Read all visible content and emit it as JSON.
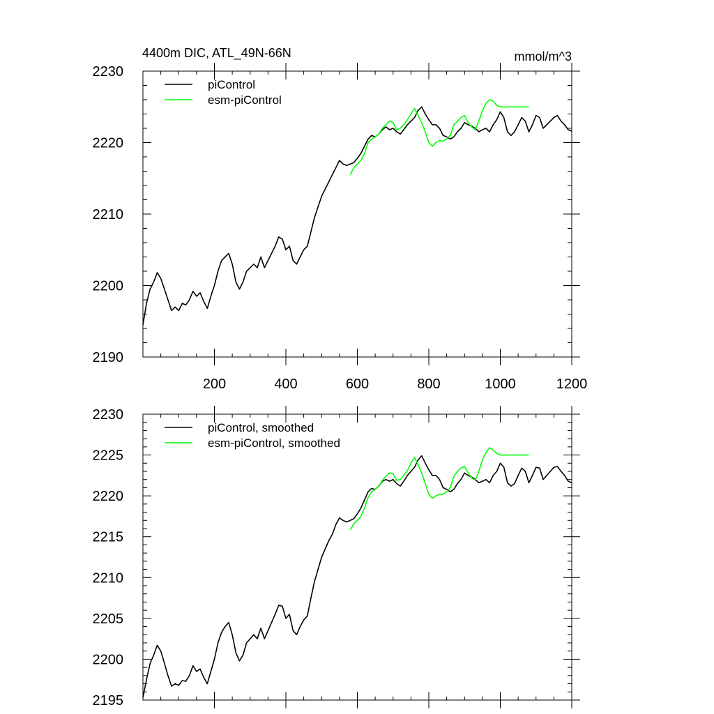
{
  "chart_data": [
    {
      "type": "line",
      "title": "4400m DIC, ATL_49N-66N",
      "units": "mmol/m^3",
      "xlim": [
        0,
        1200
      ],
      "ylim": [
        2190,
        2230
      ],
      "x_tick_labels": [
        "200",
        "400",
        "600",
        "800",
        "1000",
        "1200"
      ],
      "x_ticks": [
        200,
        400,
        600,
        800,
        1000,
        1200
      ],
      "y_tick_labels": [
        "2190",
        "2200",
        "2210",
        "2220",
        "2230"
      ],
      "y_ticks": [
        2190,
        2200,
        2210,
        2220,
        2230
      ],
      "legend_position": "top-left",
      "series": [
        {
          "name": "piControl",
          "color": "#000000",
          "x": [
            0,
            10,
            20,
            30,
            40,
            50,
            60,
            70,
            80,
            90,
            100,
            110,
            120,
            130,
            140,
            150,
            160,
            170,
            180,
            190,
            200,
            210,
            220,
            230,
            240,
            250,
            260,
            270,
            280,
            290,
            300,
            310,
            320,
            330,
            340,
            350,
            360,
            370,
            380,
            390,
            400,
            410,
            420,
            430,
            440,
            450,
            460,
            470,
            480,
            490,
            500,
            510,
            520,
            530,
            540,
            550,
            560,
            570,
            580,
            590,
            600,
            610,
            620,
            630,
            640,
            650,
            660,
            670,
            680,
            690,
            700,
            710,
            720,
            730,
            740,
            750,
            760,
            770,
            780,
            790,
            800,
            810,
            820,
            830,
            840,
            850,
            860,
            870,
            880,
            890,
            900,
            910,
            920,
            930,
            940,
            950,
            960,
            970,
            980,
            990,
            1000,
            1010,
            1020,
            1030,
            1040,
            1050,
            1060,
            1070,
            1080,
            1090,
            1100,
            1110,
            1120,
            1130,
            1140,
            1150,
            1160,
            1170,
            1180,
            1190,
            1200
          ],
          "values": [
            2194.5,
            2197.5,
            2199.5,
            2200.5,
            2201.8,
            2201.0,
            2199.5,
            2198.0,
            2196.5,
            2197.0,
            2196.5,
            2197.5,
            2197.3,
            2198.0,
            2199.2,
            2198.5,
            2199.0,
            2197.8,
            2196.8,
            2198.5,
            2200.0,
            2202.0,
            2203.5,
            2204.0,
            2204.5,
            2203.0,
            2200.5,
            2199.5,
            2200.5,
            2202.0,
            2202.5,
            2203.0,
            2202.5,
            2204.0,
            2202.5,
            2203.5,
            2204.5,
            2205.5,
            2206.8,
            2206.5,
            2205.0,
            2205.5,
            2203.5,
            2203.0,
            2204.0,
            2205.0,
            2205.5,
            2207.5,
            2209.5,
            2211.0,
            2212.5,
            2213.5,
            2214.5,
            2215.5,
            2216.5,
            2217.5,
            2217.0,
            2216.8,
            2217.0,
            2217.2,
            2217.8,
            2218.5,
            2219.5,
            2220.5,
            2221.0,
            2220.8,
            2221.2,
            2221.8,
            2222.2,
            2221.8,
            2222.0,
            2221.5,
            2221.2,
            2221.8,
            2222.5,
            2223.0,
            2223.5,
            2224.5,
            2225.0,
            2224.0,
            2223.2,
            2222.5,
            2222.5,
            2222.0,
            2221.0,
            2220.8,
            2220.5,
            2220.8,
            2221.5,
            2222.0,
            2222.8,
            2222.5,
            2222.3,
            2222.0,
            2221.5,
            2221.8,
            2222.0,
            2221.5,
            2222.5,
            2223.2,
            2224.3,
            2223.5,
            2221.5,
            2221.0,
            2221.5,
            2222.5,
            2223.5,
            2223.0,
            2221.5,
            2222.5,
            2223.8,
            2223.5,
            2222.0,
            2222.5,
            2223.0,
            2223.5,
            2223.8,
            2223.0,
            2222.5,
            2221.8,
            2221.6
          ]
        },
        {
          "name": "esm-piControl",
          "color": "#00ff00",
          "x": [
            580,
            590,
            600,
            610,
            620,
            630,
            640,
            650,
            660,
            670,
            680,
            690,
            700,
            710,
            720,
            730,
            740,
            750,
            760,
            770,
            780,
            790,
            800,
            810,
            820,
            830,
            840,
            850,
            860,
            870,
            880,
            890,
            900,
            910,
            920,
            930,
            940,
            950,
            960,
            970,
            980,
            990,
            1000,
            1010,
            1020,
            1030,
            1040,
            1050,
            1060,
            1070,
            1080
          ],
          "values": [
            2215.5,
            2216.5,
            2217.0,
            2217.5,
            2218.5,
            2220.0,
            2220.5,
            2220.8,
            2221.2,
            2222.0,
            2222.5,
            2223.0,
            2222.8,
            2221.8,
            2222.0,
            2222.5,
            2223.2,
            2224.0,
            2224.8,
            2223.8,
            2222.8,
            2221.5,
            2220.0,
            2219.5,
            2220.0,
            2220.3,
            2220.2,
            2220.5,
            2221.0,
            2222.5,
            2223.0,
            2223.5,
            2223.8,
            2222.8,
            2222.2,
            2221.8,
            2223.0,
            2224.5,
            2225.5,
            2226.0,
            2225.8,
            2225.2,
            2225.0,
            2225.0,
            2225.0,
            2225.0,
            2225.0,
            2225.0,
            2225.0,
            2225.0,
            2225.0
          ]
        }
      ]
    },
    {
      "type": "line",
      "title": "",
      "units": "",
      "xlim": [
        0,
        1200
      ],
      "ylim": [
        2195,
        2230
      ],
      "x_ticks": [
        200,
        400,
        600,
        800,
        1000,
        1200
      ],
      "y_tick_labels": [
        "2195",
        "2200",
        "2205",
        "2210",
        "2215",
        "2220",
        "2225",
        "2230"
      ],
      "y_ticks": [
        2195,
        2200,
        2205,
        2210,
        2215,
        2220,
        2225,
        2230
      ],
      "legend_position": "top-left",
      "series": [
        {
          "name": "piControl, smoothed",
          "color": "#000000",
          "x": [
            0,
            10,
            20,
            30,
            40,
            50,
            60,
            70,
            80,
            90,
            100,
            110,
            120,
            130,
            140,
            150,
            160,
            170,
            180,
            190,
            200,
            210,
            220,
            230,
            240,
            250,
            260,
            270,
            280,
            290,
            300,
            310,
            320,
            330,
            340,
            350,
            360,
            370,
            380,
            390,
            400,
            410,
            420,
            430,
            440,
            450,
            460,
            470,
            480,
            490,
            500,
            510,
            520,
            530,
            540,
            550,
            560,
            570,
            580,
            590,
            600,
            610,
            620,
            630,
            640,
            650,
            660,
            670,
            680,
            690,
            700,
            710,
            720,
            730,
            740,
            750,
            760,
            770,
            780,
            790,
            800,
            810,
            820,
            830,
            840,
            850,
            860,
            870,
            880,
            890,
            900,
            910,
            920,
            930,
            940,
            950,
            960,
            970,
            980,
            990,
            1000,
            1010,
            1020,
            1030,
            1040,
            1050,
            1060,
            1070,
            1080,
            1090,
            1100,
            1110,
            1120,
            1130,
            1140,
            1150,
            1160,
            1170,
            1180,
            1190,
            1200
          ],
          "values": [
            2195.3,
            2197.5,
            2199.5,
            2200.5,
            2201.7,
            2201.0,
            2199.5,
            2198.0,
            2196.7,
            2197.0,
            2196.8,
            2197.4,
            2197.3,
            2198.0,
            2199.2,
            2198.5,
            2198.8,
            2197.8,
            2197.0,
            2198.5,
            2200.0,
            2202.0,
            2203.3,
            2204.0,
            2204.5,
            2203.0,
            2200.8,
            2199.8,
            2200.5,
            2202.0,
            2202.5,
            2203.0,
            2202.5,
            2203.8,
            2202.5,
            2203.5,
            2204.5,
            2205.5,
            2206.6,
            2206.5,
            2205.0,
            2205.5,
            2203.5,
            2203.0,
            2204.0,
            2204.8,
            2205.3,
            2207.5,
            2209.5,
            2211.0,
            2212.5,
            2213.5,
            2214.5,
            2215.3,
            2216.5,
            2217.3,
            2217.0,
            2216.8,
            2217.0,
            2217.2,
            2217.8,
            2218.5,
            2219.5,
            2220.5,
            2220.9,
            2220.8,
            2221.2,
            2221.8,
            2222.0,
            2221.8,
            2222.0,
            2221.5,
            2221.2,
            2221.8,
            2222.5,
            2223.0,
            2223.5,
            2224.4,
            2224.9,
            2224.0,
            2223.2,
            2222.5,
            2222.5,
            2222.0,
            2221.0,
            2220.8,
            2220.5,
            2220.8,
            2221.5,
            2222.0,
            2222.8,
            2222.5,
            2222.3,
            2222.0,
            2221.6,
            2221.8,
            2222.0,
            2221.6,
            2222.5,
            2223.0,
            2224.0,
            2223.5,
            2221.6,
            2221.2,
            2221.5,
            2222.5,
            2223.4,
            2223.0,
            2221.6,
            2222.5,
            2223.5,
            2223.4,
            2222.0,
            2222.5,
            2223.0,
            2223.5,
            2223.6,
            2223.0,
            2222.5,
            2221.8,
            2221.6
          ]
        },
        {
          "name": "esm-piControl, smoothed",
          "color": "#00ff00",
          "x": [
            580,
            590,
            600,
            610,
            620,
            630,
            640,
            650,
            660,
            670,
            680,
            690,
            700,
            710,
            720,
            730,
            740,
            750,
            760,
            770,
            780,
            790,
            800,
            810,
            820,
            830,
            840,
            850,
            860,
            870,
            880,
            890,
            900,
            910,
            920,
            930,
            940,
            950,
            960,
            970,
            980,
            990,
            1000,
            1010,
            1020,
            1030,
            1040,
            1050,
            1060,
            1070,
            1080
          ],
          "values": [
            2215.8,
            2216.6,
            2217.0,
            2217.5,
            2218.5,
            2219.8,
            2220.5,
            2220.8,
            2221.2,
            2221.9,
            2222.4,
            2222.8,
            2222.7,
            2221.9,
            2222.0,
            2222.5,
            2223.1,
            2224.0,
            2224.7,
            2223.8,
            2222.8,
            2221.5,
            2220.2,
            2219.7,
            2220.0,
            2220.2,
            2220.2,
            2220.5,
            2221.0,
            2222.4,
            2223.0,
            2223.4,
            2223.6,
            2222.8,
            2222.2,
            2221.9,
            2223.0,
            2224.4,
            2225.3,
            2225.9,
            2225.6,
            2225.2,
            2225.0,
            2225.0,
            2225.0,
            2225.0,
            2225.0,
            2225.0,
            2225.0,
            2225.0,
            2225.0
          ]
        }
      ]
    }
  ]
}
